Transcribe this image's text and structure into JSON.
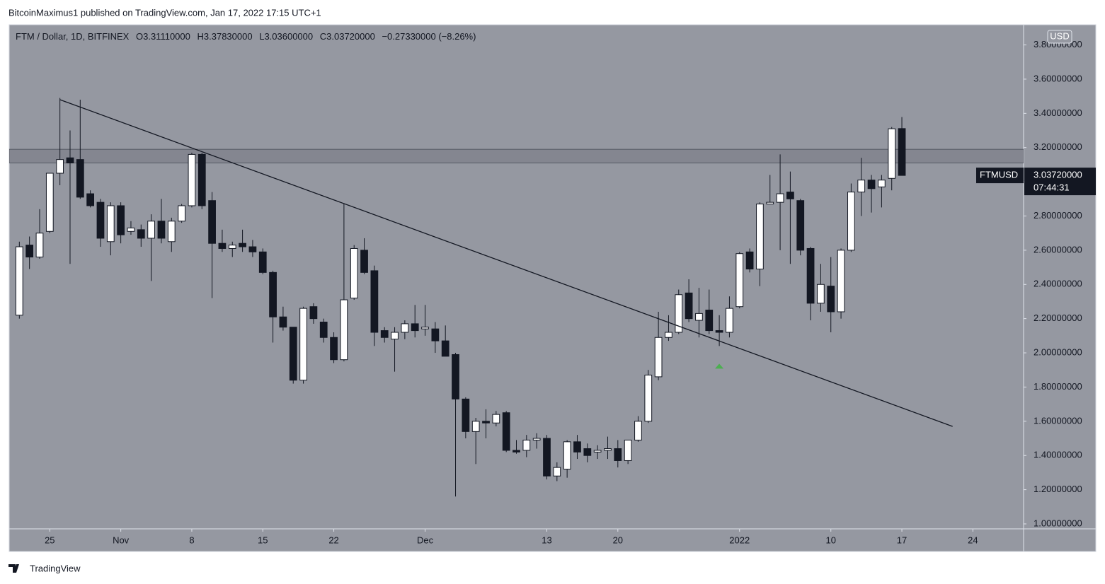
{
  "page": {
    "attribution": "BitcoinMaximus1 published on TradingView.com, Jan 17, 2022 17:15 UTC+1",
    "brand": "TradingView"
  },
  "chart_data": {
    "type": "candlestick",
    "legend": {
      "symbol": "FTM / Dollar, 1D, BITFINEX",
      "fields": [
        {
          "key": "O",
          "text": "3.31110000"
        },
        {
          "key": "H",
          "text": "3.37830000"
        },
        {
          "key": "L",
          "text": "3.03600000"
        },
        {
          "key": "C",
          "text": "3.03720000"
        }
      ],
      "change": "−0.27330000 (−8.26%)"
    },
    "currency": "USD",
    "price_label": {
      "symbol": "FTMUSD",
      "price": "3.03720000",
      "countdown": "07:44:31"
    },
    "up_color": "#ffffff",
    "down_color": "#131722",
    "background": "#9598a1",
    "x": [
      "2021-10-22",
      "2021-10-23",
      "2021-10-24",
      "2021-10-25",
      "2021-10-26",
      "2021-10-27",
      "2021-10-28",
      "2021-10-29",
      "2021-10-30",
      "2021-10-31",
      "2021-11-01",
      "2021-11-02",
      "2021-11-03",
      "2021-11-04",
      "2021-11-05",
      "2021-11-06",
      "2021-11-07",
      "2021-11-08",
      "2021-11-09",
      "2021-11-10",
      "2021-11-11",
      "2021-11-12",
      "2021-11-13",
      "2021-11-14",
      "2021-11-15",
      "2021-11-16",
      "2021-11-17",
      "2021-11-18",
      "2021-11-19",
      "2021-11-20",
      "2021-11-21",
      "2021-11-22",
      "2021-11-23",
      "2021-11-24",
      "2021-11-25",
      "2021-11-26",
      "2021-11-27",
      "2021-11-28",
      "2021-11-29",
      "2021-11-30",
      "2021-12-01",
      "2021-12-02",
      "2021-12-03",
      "2021-12-04",
      "2021-12-05",
      "2021-12-06",
      "2021-12-07",
      "2021-12-08",
      "2021-12-09",
      "2021-12-10",
      "2021-12-11",
      "2021-12-12",
      "2021-12-13",
      "2021-12-14",
      "2021-12-15",
      "2021-12-16",
      "2021-12-17",
      "2021-12-18",
      "2021-12-19",
      "2021-12-20",
      "2021-12-21",
      "2021-12-22",
      "2021-12-23",
      "2021-12-24",
      "2021-12-25",
      "2021-12-26",
      "2021-12-27",
      "2021-12-28",
      "2021-12-29",
      "2021-12-30",
      "2021-12-31",
      "2022-01-01",
      "2022-01-02",
      "2022-01-03",
      "2022-01-04",
      "2022-01-05",
      "2022-01-06",
      "2022-01-07",
      "2022-01-08",
      "2022-01-09",
      "2022-01-10",
      "2022-01-11",
      "2022-01-12",
      "2022-01-13",
      "2022-01-14",
      "2022-01-15",
      "2022-01-16",
      "2022-01-17"
    ],
    "open": [
      2.22,
      2.63,
      2.56,
      2.71,
      3.05,
      3.14,
      3.13,
      2.93,
      2.88,
      2.65,
      2.86,
      2.71,
      2.72,
      2.67,
      2.77,
      2.65,
      2.77,
      2.86,
      3.16,
      2.89,
      2.64,
      2.61,
      2.64,
      2.62,
      2.59,
      2.47,
      2.21,
      2.15,
      1.84,
      2.27,
      2.18,
      2.09,
      1.96,
      2.32,
      2.6,
      2.48,
      2.13,
      2.08,
      2.12,
      2.17,
      2.14,
      2.14,
      2.07,
      1.99,
      1.73,
      1.54,
      1.6,
      1.59,
      1.65,
      1.43,
      1.43,
      1.49,
      1.5,
      1.28,
      1.32,
      1.48,
      1.44,
      1.42,
      1.43,
      1.44,
      1.37,
      1.49,
      1.6,
      1.86,
      2.09,
      2.12,
      2.35,
      2.19,
      2.25,
      2.13,
      2.12,
      2.27,
      2.59,
      2.49,
      2.87,
      2.88,
      2.94,
      2.89,
      2.61,
      2.29,
      2.39,
      2.24,
      2.6,
      2.94,
      3.01,
      2.97,
      3.02,
      3.3111
    ],
    "high": [
      2.65,
      2.68,
      2.84,
      3.05,
      3.49,
      3.3,
      3.48,
      2.95,
      2.9,
      2.88,
      2.88,
      2.77,
      2.75,
      2.81,
      2.9,
      2.79,
      2.87,
      3.17,
      3.17,
      2.94,
      2.72,
      2.65,
      2.72,
      2.66,
      2.61,
      2.48,
      2.27,
      2.15,
      2.27,
      2.29,
      2.2,
      2.12,
      2.87,
      2.63,
      2.67,
      2.51,
      2.15,
      2.15,
      2.19,
      2.28,
      2.28,
      2.18,
      2.16,
      2.0,
      1.74,
      1.62,
      1.67,
      1.66,
      1.66,
      1.49,
      1.52,
      1.53,
      1.52,
      1.36,
      1.49,
      1.52,
      1.47,
      1.46,
      1.51,
      1.49,
      1.49,
      1.63,
      1.9,
      2.24,
      2.22,
      2.37,
      2.43,
      2.38,
      2.37,
      2.22,
      2.33,
      2.59,
      2.61,
      2.88,
      3.04,
      3.16,
      3.06,
      2.9,
      2.62,
      2.52,
      2.56,
      2.61,
      2.99,
      3.14,
      3.04,
      3.04,
      3.32,
      3.3783
    ],
    "low": [
      2.2,
      2.49,
      2.55,
      2.7,
      2.98,
      2.52,
      2.9,
      2.85,
      2.62,
      2.57,
      2.64,
      2.69,
      2.62,
      2.42,
      2.64,
      2.59,
      2.76,
      2.85,
      2.84,
      2.32,
      2.59,
      2.56,
      2.59,
      2.56,
      2.46,
      2.06,
      2.13,
      1.82,
      1.82,
      2.17,
      2.06,
      1.94,
      1.95,
      2.31,
      2.46,
      2.04,
      2.06,
      1.89,
      2.08,
      2.09,
      2.1,
      2.0,
      1.98,
      1.16,
      1.5,
      1.35,
      1.5,
      1.57,
      1.42,
      1.41,
      1.39,
      1.44,
      1.26,
      1.25,
      1.27,
      1.38,
      1.36,
      1.38,
      1.38,
      1.33,
      1.35,
      1.48,
      1.59,
      1.84,
      2.07,
      2.11,
      2.18,
      2.09,
      2.11,
      2.04,
      2.09,
      2.26,
      2.47,
      2.39,
      2.87,
      2.6,
      2.52,
      2.57,
      2.19,
      2.24,
      2.12,
      2.2,
      2.59,
      2.8,
      2.82,
      2.85,
      2.95,
      3.036
    ],
    "close": [
      2.62,
      2.56,
      2.7,
      3.05,
      3.13,
      3.11,
      2.91,
      2.86,
      2.67,
      2.86,
      2.69,
      2.73,
      2.67,
      2.77,
      2.67,
      2.77,
      2.86,
      3.16,
      2.86,
      2.64,
      2.61,
      2.63,
      2.62,
      2.59,
      2.47,
      2.21,
      2.15,
      1.84,
      2.26,
      2.2,
      2.09,
      1.96,
      2.31,
      2.61,
      2.47,
      2.12,
      2.09,
      2.12,
      2.17,
      2.13,
      2.15,
      2.07,
      1.98,
      1.73,
      1.54,
      1.6,
      1.59,
      1.64,
      1.43,
      1.42,
      1.49,
      1.5,
      1.28,
      1.33,
      1.48,
      1.42,
      1.4,
      1.43,
      1.44,
      1.37,
      1.49,
      1.6,
      1.87,
      2.09,
      2.12,
      2.34,
      2.2,
      2.23,
      2.13,
      2.12,
      2.26,
      2.58,
      2.49,
      2.87,
      2.88,
      2.93,
      2.9,
      2.6,
      2.29,
      2.4,
      2.24,
      2.6,
      2.94,
      3.01,
      2.96,
      3.01,
      3.31,
      3.0372
    ],
    "xlim": [
      "2021-10-21",
      "2022-01-29"
    ],
    "xticks": [
      {
        "value": "2021-10-25",
        "label": "25"
      },
      {
        "value": "2021-11-01",
        "label": "Nov"
      },
      {
        "value": "2021-11-08",
        "label": "8"
      },
      {
        "value": "2021-11-15",
        "label": "15"
      },
      {
        "value": "2021-11-22",
        "label": "22"
      },
      {
        "value": "2021-12-01",
        "label": "Dec"
      },
      {
        "value": "2021-12-13",
        "label": "13"
      },
      {
        "value": "2021-12-20",
        "label": "20"
      },
      {
        "value": "2022-01-01",
        "label": "2022"
      },
      {
        "value": "2022-01-10",
        "label": "10"
      },
      {
        "value": "2022-01-17",
        "label": "17"
      },
      {
        "value": "2022-01-24",
        "label": "24"
      }
    ],
    "ylim": [
      0.971,
      3.918
    ],
    "yticks": [
      {
        "value": 1.0,
        "label": "1.00000000"
      },
      {
        "value": 1.2,
        "label": "1.20000000"
      },
      {
        "value": 1.4,
        "label": "1.40000000"
      },
      {
        "value": 1.6,
        "label": "1.60000000"
      },
      {
        "value": 1.8,
        "label": "1.80000000"
      },
      {
        "value": 2.0,
        "label": "2.00000000"
      },
      {
        "value": 2.2,
        "label": "2.20000000"
      },
      {
        "value": 2.4,
        "label": "2.40000000"
      },
      {
        "value": 2.6,
        "label": "2.60000000"
      },
      {
        "value": 2.8,
        "label": "2.80000000"
      },
      {
        "value": 3.0,
        "label": "3.00000000"
      },
      {
        "value": 3.2,
        "label": "3.20000000"
      },
      {
        "value": 3.4,
        "label": "3.40000000"
      },
      {
        "value": 3.6,
        "label": "3.60000000"
      },
      {
        "value": 3.8,
        "label": "3.80000000"
      }
    ],
    "grid": false,
    "zone": {
      "ylim": [
        3.11,
        3.19
      ]
    },
    "trendline": {
      "x": [
        "2021-10-26",
        "2022-01-22"
      ],
      "y": [
        3.48,
        1.57
      ]
    },
    "markers": [
      {
        "x": "2021-12-30",
        "y": 1.92,
        "color": "#4caf50"
      }
    ]
  }
}
